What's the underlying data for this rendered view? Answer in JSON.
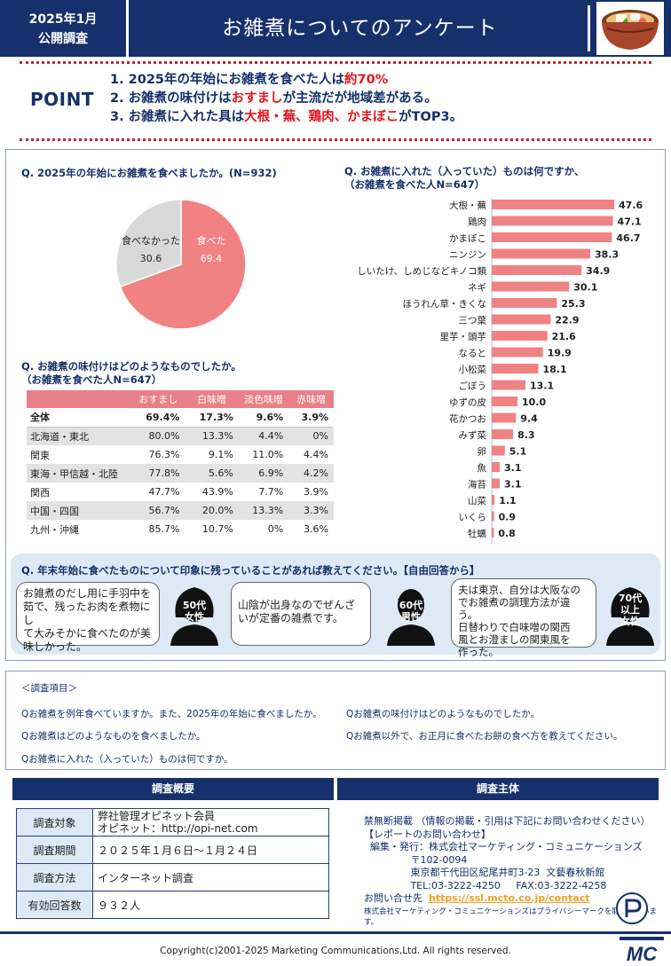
{
  "header": {
    "date_line1": "2025年1月",
    "date_line2": "公開調査",
    "title": "お雑煮についてのアンケート",
    "icon": "ozoni-bowl-icon"
  },
  "point": {
    "label": "POINT",
    "items": [
      {
        "a": "1.  2025年の年始にお雑煮を食べた人は",
        "b": "約70%",
        "c": "",
        "d": "",
        "e": ""
      },
      {
        "a": "2.  お雑煮の味付けは",
        "b": "おすまし",
        "c": "が主流だが地域差がある。",
        "d": "",
        "e": ""
      },
      {
        "a": "3.  お雑煮に入れた具は",
        "b": "大根・蕪、鶏肉、かまぼこ",
        "c": "がTOP3。",
        "d": "",
        "e": ""
      }
    ]
  },
  "q1": {
    "title": "Q. 2025年の年始にお雑煮を食べましたか。(N=932)",
    "slices": [
      {
        "label": "食べた",
        "value": 69.4,
        "value_text": "69.4",
        "color": "#f08284"
      },
      {
        "label": "食べなかった",
        "value": 30.6,
        "value_text": "30.6",
        "color": "#d9d9d9"
      }
    ]
  },
  "q2": {
    "title_line1": "Q. お雑煮の味付けはどのようなものでしたか。",
    "title_line2": "（お雑煮を食べた人N=647）",
    "columns": [
      "",
      "おすまし",
      "白味噌",
      "淡色味噌",
      "赤味噌"
    ],
    "rows": [
      {
        "name": "全体",
        "v": [
          "69.4%",
          "17.3%",
          "9.6%",
          "3.9%"
        ]
      },
      {
        "name": "北海道・東北",
        "v": [
          "80.0%",
          "13.3%",
          "4.4%",
          "0%"
        ]
      },
      {
        "name": "関東",
        "v": [
          "76.3%",
          "9.1%",
          "11.0%",
          "4.4%"
        ]
      },
      {
        "name": "東海・甲信越・北陸",
        "v": [
          "77.8%",
          "5.6%",
          "6.9%",
          "4.2%"
        ]
      },
      {
        "name": "関西",
        "v": [
          "47.7%",
          "43.9%",
          "7.7%",
          "3.9%"
        ]
      },
      {
        "name": "中国・四国",
        "v": [
          "56.7%",
          "20.0%",
          "13.3%",
          "3.3%"
        ]
      },
      {
        "name": "九州・沖縄",
        "v": [
          "85.7%",
          "10.7%",
          "0%",
          "3.6%"
        ]
      }
    ]
  },
  "q3": {
    "title_line1": "Q. お雑煮に入れた（入っていた）ものは何ですか、",
    "title_line2": "（お雑煮を食べた人N=647）"
  },
  "chart_data": {
    "type": "bar",
    "orientation": "horizontal",
    "categories": [
      "大根・蕪",
      "鶏肉",
      "かまぼこ",
      "ニンジン",
      "しいたけ、しめじなどキノコ類",
      "ネギ",
      "ほうれん草・きくな",
      "三つ葉",
      "里芋・頭芋",
      "なると",
      "小松菜",
      "ごぼう",
      "ゆずの皮",
      "花かつお",
      "みず菜",
      "卵",
      "魚",
      "海苔",
      "山菜",
      "いくら",
      "牡蠣"
    ],
    "values": [
      47.6,
      47.1,
      46.7,
      38.3,
      34.9,
      30.1,
      25.3,
      22.9,
      21.6,
      19.9,
      18.1,
      13.1,
      10.0,
      9.4,
      8.3,
      5.1,
      3.1,
      3.1,
      1.1,
      0.9,
      0.8
    ],
    "value_labels": [
      "47.6",
      "47.1",
      "46.7",
      "38.3",
      "34.9",
      "30.1",
      "25.3",
      "22.9",
      "21.6",
      "19.9",
      "18.1",
      "13.1",
      "10.0",
      "9.4",
      "8.3",
      "5.1",
      "3.1",
      "3.1",
      "1.1",
      "0.9",
      "0.8"
    ],
    "bar_color": "#f08284",
    "grid": false
  },
  "q4": {
    "title": "Q. 年末年始に食べたものについて印象に残っていることがあれば教えてください。【自由回答から】",
    "answers": [
      {
        "line1": "お雑煮のだし用に手羽中を",
        "line2": "茹で、残ったお肉を煮物にし",
        "line3": "て大みそかに食べたのが美",
        "line4": "味しかった。",
        "who1": "50代",
        "who2": "女性"
      },
      {
        "line1": "山陰が出身なのでぜんざ",
        "line2": "いが定番の雑煮です。",
        "line3": "",
        "line4": "",
        "who1": "60代",
        "who2": "男性"
      },
      {
        "line1": "夫は東京、自分は大阪なの",
        "line2": "でお雑煮の調理方法が違う。",
        "line3": "日替わりで白味噌の関西",
        "line4": "風とお澄ましの関東風を",
        "line5": "作った。",
        "who1": "70代",
        "who1b": "以上",
        "who2": "女性"
      }
    ]
  },
  "items": {
    "head": "＜調査項目＞",
    "list": [
      "Qお雑煮を例年食べていますか。また、2025年の年始に食べましたか。",
      "Qお雑煮はどのようなものを食べましたか。",
      "Qお雑煮に入れた（入っていた）ものは何ですか。",
      "Qお雑煮の味付けはどのようなものでしたか。",
      "Qお雑煮以外で、お正月に食べたお餅の食べ方を教えてください。"
    ]
  },
  "overview": {
    "band": "調査概要",
    "rows": [
      {
        "k": "調査対象",
        "v1": "弊社管理オピネット会員",
        "v2": "オピネット：http://opi-net.com"
      },
      {
        "k": "調査期間",
        "v1": "２０２５年１月６日～１月２４日",
        "v2": ""
      },
      {
        "k": "調査方法",
        "v1": "インターネット調査",
        "v2": ""
      },
      {
        "k": "有効回答数",
        "v1": "９３２人",
        "v2": ""
      }
    ]
  },
  "org": {
    "band": "調査主体",
    "line1": "禁無断掲載 （情報の掲載・引用は下記にお問い合わせください）",
    "line2": "【レポートのお問い合わせ】",
    "line3": "  編集・発行：株式会社マーケティング・コミュニケーションズ",
    "line4": "               〒102-0094",
    "line5": "               東京都千代田区紀尾井町3-23  文藝春秋新館",
    "line6": "               TEL:03-3222-4250     FAX:03-3222-4258",
    "contact_label": "お問い合せ先  ",
    "contact_link": "https://ssl.mcto.co.jp/contact",
    "privacy": "株式会社マーケティング・コミュニケーションズはプライバシーマークを取得しています。",
    "privacy_mark": "privacy-mark-icon",
    "logo": "MC"
  },
  "footer": {
    "copyright": "Copyright(c)2001-2025 Marketing Communications,Ltd. All rights reserved."
  }
}
